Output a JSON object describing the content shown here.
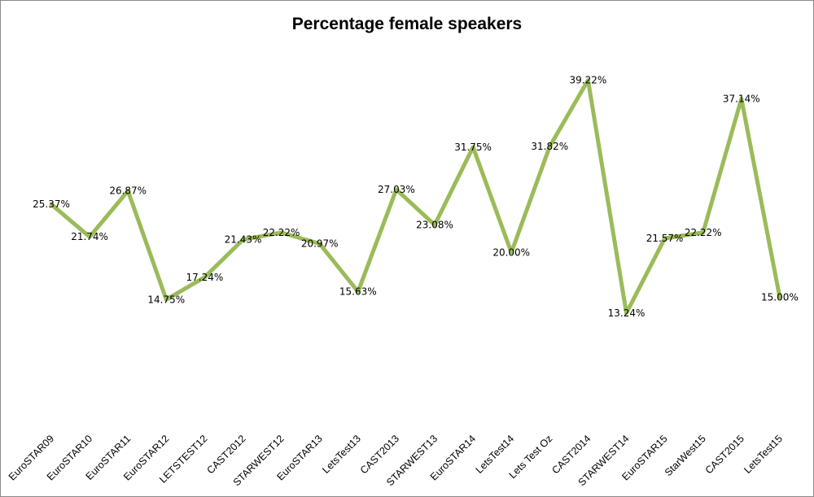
{
  "chart_data": {
    "type": "line",
    "title": "Percentage female speakers",
    "xlabel": "",
    "ylabel": "",
    "ylim": [
      0,
      45
    ],
    "grid": false,
    "legend": "none",
    "line_color": "#9BBB59",
    "categories": [
      "EuroSTAR09",
      "EuroSTAR10",
      "EuroSTAR11",
      "EuroSTAR12",
      "LETSTEST12",
      "CAST2012",
      "STARWEST12",
      "EuroSTAR13",
      "LetsTest13",
      "CAST2013",
      "STARWEST13",
      "EuroSTAR14",
      "LetsTest14",
      "Lets Test Oz",
      "CAST2014",
      "STARWEST14",
      "EuroSTAR15",
      "StarWest15",
      "CAST2015",
      "LetsTest15"
    ],
    "values": [
      25.37,
      21.74,
      26.87,
      14.75,
      17.24,
      21.43,
      22.22,
      20.97,
      15.63,
      27.03,
      23.08,
      31.75,
      20.0,
      31.82,
      39.22,
      13.24,
      21.57,
      22.22,
      37.14,
      15.0
    ],
    "data_labels": [
      "25.37%",
      "21.74%",
      "26.87%",
      "14.75%",
      "17.24%",
      "21.43%",
      "22.22%",
      "20.97%",
      "15.63%",
      "27.03%",
      "23.08%",
      "31.75%",
      "20.00%",
      "31.82%",
      "39.22%",
      "13.24%",
      "21.57%",
      "22.22%",
      "37.14%",
      "15.00%"
    ]
  }
}
